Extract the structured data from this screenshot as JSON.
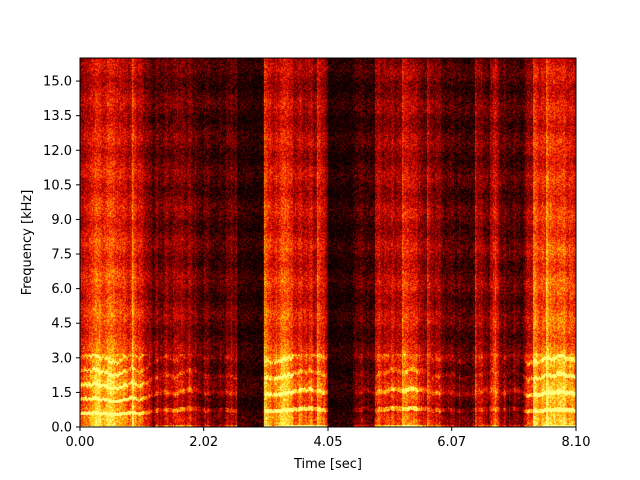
{
  "chart_data": {
    "type": "heatmap",
    "title": "",
    "xlabel": "Time [sec]",
    "ylabel": "Frequency [kHz]",
    "xlim": [
      0.0,
      8.1
    ],
    "ylim": [
      0.0,
      16.0
    ],
    "x_ticks": [
      {
        "value": 0.0,
        "label": "0.00"
      },
      {
        "value": 2.02,
        "label": "2.02"
      },
      {
        "value": 4.05,
        "label": "4.05"
      },
      {
        "value": 6.07,
        "label": "6.07"
      },
      {
        "value": 8.1,
        "label": "8.10"
      }
    ],
    "y_ticks": [
      {
        "value": 0.0,
        "label": "0.0"
      },
      {
        "value": 1.5,
        "label": "1.5"
      },
      {
        "value": 3.0,
        "label": "3.0"
      },
      {
        "value": 4.5,
        "label": "4.5"
      },
      {
        "value": 6.0,
        "label": "6.0"
      },
      {
        "value": 7.5,
        "label": "7.5"
      },
      {
        "value": 9.0,
        "label": "9.0"
      },
      {
        "value": 10.5,
        "label": "10.5"
      },
      {
        "value": 12.0,
        "label": "12.0"
      },
      {
        "value": 13.5,
        "label": "13.5"
      },
      {
        "value": 15.0,
        "label": "15.0"
      }
    ],
    "colormap": "hot",
    "colormap_stops": [
      "#0a0000",
      "#5a0000",
      "#b00000",
      "#ff1a00",
      "#ff7a00",
      "#ffd000",
      "#ffff80"
    ],
    "silence_gaps_sec": [
      [
        2.55,
        3.0
      ],
      [
        4.05,
        4.45
      ]
    ],
    "voiced_segments_sec": [
      [
        0.0,
        2.5
      ],
      [
        3.05,
        4.05
      ],
      [
        4.5,
        8.05
      ]
    ],
    "grid": false,
    "legend": "none"
  }
}
